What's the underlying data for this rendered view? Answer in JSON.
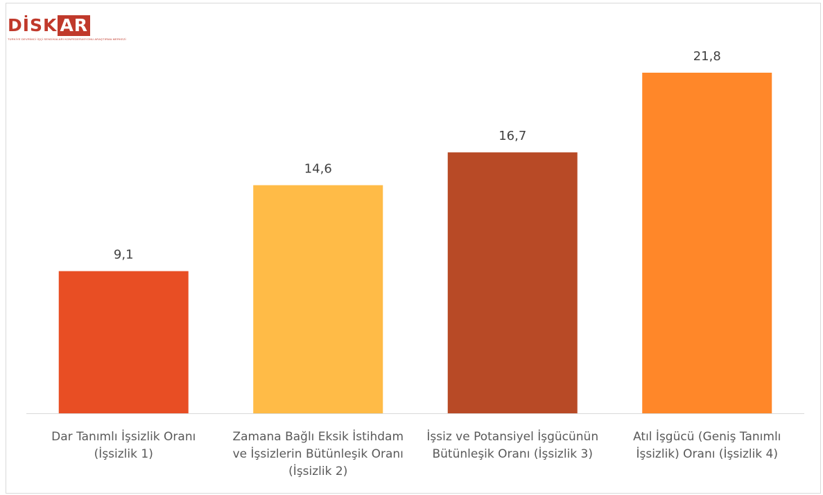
{
  "logo": {
    "word_main": "DİSK",
    "word_box": "AR",
    "tagline": "TÜRKİYE DEVRİMCİ İŞÇİ SENDİKALARI KONFEDERASYONU ARAŞTIRMA MERKEZİ"
  },
  "chart_data": {
    "type": "bar",
    "title": "",
    "xlabel": "",
    "ylabel": "",
    "ylim": [
      0,
      24
    ],
    "grid": false,
    "legend": "none",
    "categories": [
      [
        "Dar Tanımlı İşsizlik Oranı",
        "(İşsizlik 1)"
      ],
      [
        "Zamana Bağlı Eksik İstihdam",
        "ve İşsizlerin Bütünleşik Oranı",
        "(İşsizlik 2)"
      ],
      [
        "İşsiz ve Potansiyel İşgücünün",
        "Bütünleşik Oranı (İşsizlik 3)"
      ],
      [
        "Atıl İşgücü (Geniş Tanımlı",
        "İşsizlik) Oranı (İşsizlik 4)"
      ]
    ],
    "values": [
      9.1,
      14.6,
      16.7,
      21.8
    ],
    "value_labels": [
      "9,1",
      "14,6",
      "16,7",
      "21,8"
    ],
    "colors": [
      "#e84e24",
      "#ffbb47",
      "#b84a26",
      "#ff8729"
    ]
  }
}
